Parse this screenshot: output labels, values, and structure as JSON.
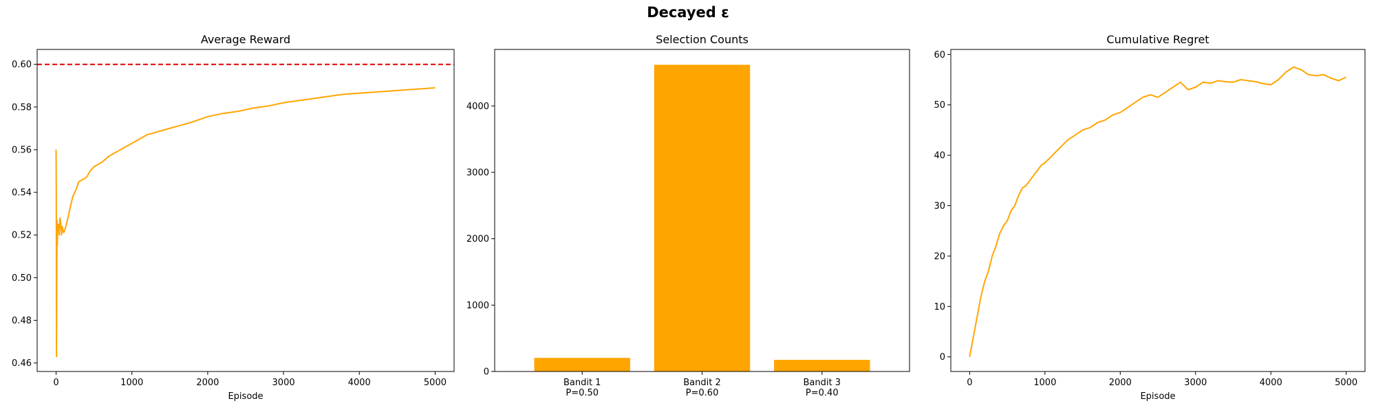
{
  "figure": {
    "suptitle": "Decayed ε"
  },
  "colors": {
    "series": "#FFA500",
    "reference": "#DD0000",
    "axes": "#000000"
  },
  "chart_data": [
    {
      "type": "line",
      "title": "Average Reward",
      "xlabel": "Episode",
      "ylabel": "",
      "xlim": [
        -250,
        5250
      ],
      "ylim": [
        0.456,
        0.607
      ],
      "xticks": [
        0,
        1000,
        2000,
        3000,
        4000,
        5000
      ],
      "xtick_labels": [
        "0",
        "1000",
        "2000",
        "3000",
        "4000",
        "5000"
      ],
      "yticks": [
        0.46,
        0.48,
        0.5,
        0.52,
        0.54,
        0.56,
        0.58,
        0.6
      ],
      "ytick_labels": [
        "0.46",
        "0.48",
        "0.50",
        "0.52",
        "0.54",
        "0.56",
        "0.58",
        "0.60"
      ],
      "hline": {
        "y": 0.6,
        "style": "dashed"
      },
      "series": [
        {
          "x": [
            0,
            2,
            5,
            8,
            12,
            16,
            20,
            30,
            40,
            50,
            60,
            70,
            80,
            100,
            120,
            150,
            180,
            220,
            260,
            300,
            350,
            400,
            450,
            500,
            550,
            600,
            700,
            800,
            900,
            1000,
            1200,
            1400,
            1600,
            1800,
            2000,
            2200,
            2400,
            2600,
            2800,
            3000,
            3200,
            3400,
            3600,
            3800,
            4000,
            4200,
            4400,
            4600,
            4800,
            5000
          ],
          "y": [
            0.56,
            0.54,
            0.463,
            0.49,
            0.527,
            0.515,
            0.523,
            0.525,
            0.52,
            0.528,
            0.526,
            0.52,
            0.524,
            0.521,
            0.523,
            0.527,
            0.532,
            0.538,
            0.541,
            0.545,
            0.546,
            0.547,
            0.55,
            0.552,
            0.553,
            0.554,
            0.557,
            0.559,
            0.561,
            0.563,
            0.567,
            0.569,
            0.571,
            0.573,
            0.5755,
            0.577,
            0.578,
            0.5795,
            0.5805,
            0.582,
            0.583,
            0.584,
            0.585,
            0.586,
            0.5865,
            0.587,
            0.5875,
            0.588,
            0.5885,
            0.589
          ]
        }
      ]
    },
    {
      "type": "bar",
      "title": "Selection Counts",
      "xlabel": "",
      "ylabel": "",
      "categories": [
        "Bandit 1\nP=0.50",
        "Bandit 2\nP=0.60",
        "Bandit 3\nP=0.40"
      ],
      "values": [
        205,
        4620,
        175
      ],
      "ylim": [
        0,
        4851
      ],
      "yticks": [
        0,
        1000,
        2000,
        3000,
        4000
      ],
      "ytick_labels": [
        "0",
        "1000",
        "2000",
        "3000",
        "4000"
      ]
    },
    {
      "type": "line",
      "title": "Cumulative Regret",
      "xlabel": "Episode",
      "ylabel": "",
      "xlim": [
        -250,
        5250
      ],
      "ylim": [
        -2.9,
        61
      ],
      "xticks": [
        0,
        1000,
        2000,
        3000,
        4000,
        5000
      ],
      "xtick_labels": [
        "0",
        "1000",
        "2000",
        "3000",
        "4000",
        "5000"
      ],
      "yticks": [
        0,
        10,
        20,
        30,
        40,
        50,
        60
      ],
      "ytick_labels": [
        "0",
        "10",
        "20",
        "30",
        "40",
        "50",
        "60"
      ],
      "series": [
        {
          "x": [
            0,
            50,
            100,
            150,
            200,
            250,
            300,
            350,
            400,
            450,
            500,
            550,
            600,
            650,
            700,
            750,
            800,
            850,
            900,
            950,
            1000,
            1100,
            1200,
            1300,
            1400,
            1500,
            1600,
            1700,
            1800,
            1900,
            2000,
            2100,
            2200,
            2300,
            2400,
            2500,
            2600,
            2700,
            2800,
            2900,
            3000,
            3100,
            3200,
            3300,
            3400,
            3500,
            3600,
            3700,
            3800,
            3900,
            4000,
            4100,
            4200,
            4300,
            4400,
            4500,
            4600,
            4700,
            4800,
            4900,
            5000
          ],
          "y": [
            0,
            4,
            8,
            12,
            15,
            17,
            20,
            22,
            24.5,
            26,
            27,
            29,
            30,
            32,
            33.5,
            34,
            35,
            36,
            37,
            38,
            38.5,
            40,
            41.5,
            43,
            44,
            45,
            45.5,
            46.5,
            47,
            48,
            48.5,
            49.5,
            50.5,
            51.5,
            52,
            51.5,
            52.5,
            53.5,
            54.5,
            53,
            53.5,
            54.5,
            54.3,
            54.8,
            54.6,
            54.5,
            55,
            54.8,
            54.6,
            54.2,
            54,
            55,
            56.5,
            57.5,
            57,
            56,
            55.8,
            56,
            55.3,
            54.8,
            55.5
          ]
        }
      ]
    }
  ]
}
